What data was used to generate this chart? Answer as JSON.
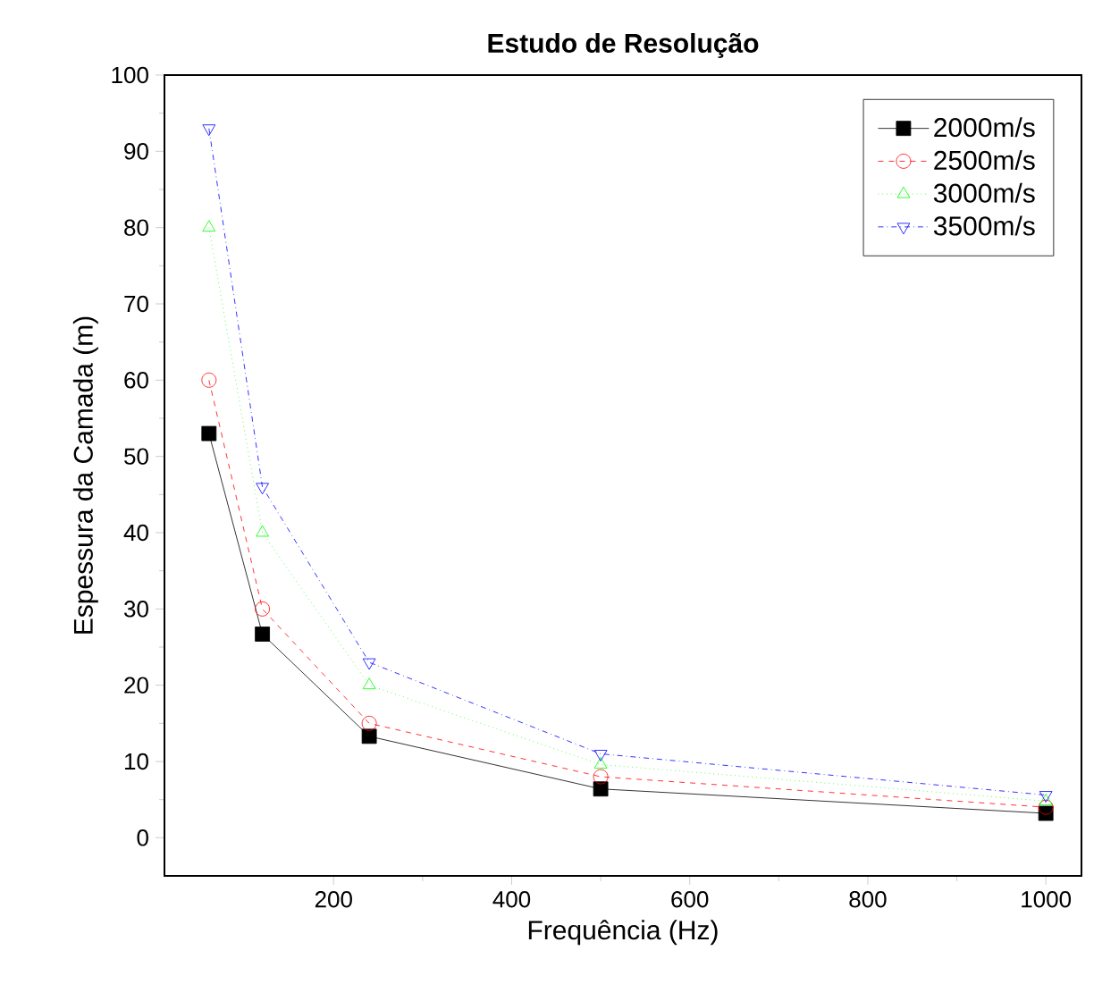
{
  "chart_data": {
    "type": "line",
    "title": "Estudo de Resolução",
    "xlabel": "Frequência (Hz)",
    "ylabel": "Espessura da Camada (m)",
    "x": [
      60,
      120,
      240,
      500,
      1000
    ],
    "series": [
      {
        "name": "2000m/s",
        "color": "#000000",
        "marker": "square",
        "line_style": "solid",
        "values": [
          53,
          26.7,
          13.3,
          6.4,
          3.2
        ]
      },
      {
        "name": "2500m/s",
        "color": "#ff0000",
        "marker": "circle",
        "line_style": "dashed",
        "values": [
          60,
          30,
          15,
          8,
          4
        ]
      },
      {
        "name": "3000m/s",
        "color": "#00ff00",
        "marker": "triangle",
        "line_style": "dotted",
        "values": [
          80,
          40,
          20,
          9.6,
          4.8
        ]
      },
      {
        "name": "3500m/s",
        "color": "#0000ff",
        "marker": "triangle-down",
        "line_style": "dashdotted",
        "values": [
          93,
          46,
          23,
          11,
          5.6
        ]
      }
    ],
    "xlim": [
      10,
      1040
    ],
    "ylim": [
      -5,
      100
    ],
    "xticks": [
      200,
      400,
      600,
      800,
      1000
    ],
    "yticks": [
      0,
      10,
      20,
      30,
      40,
      50,
      60,
      70,
      80,
      90,
      100
    ],
    "grid": false,
    "legend": "top right"
  }
}
